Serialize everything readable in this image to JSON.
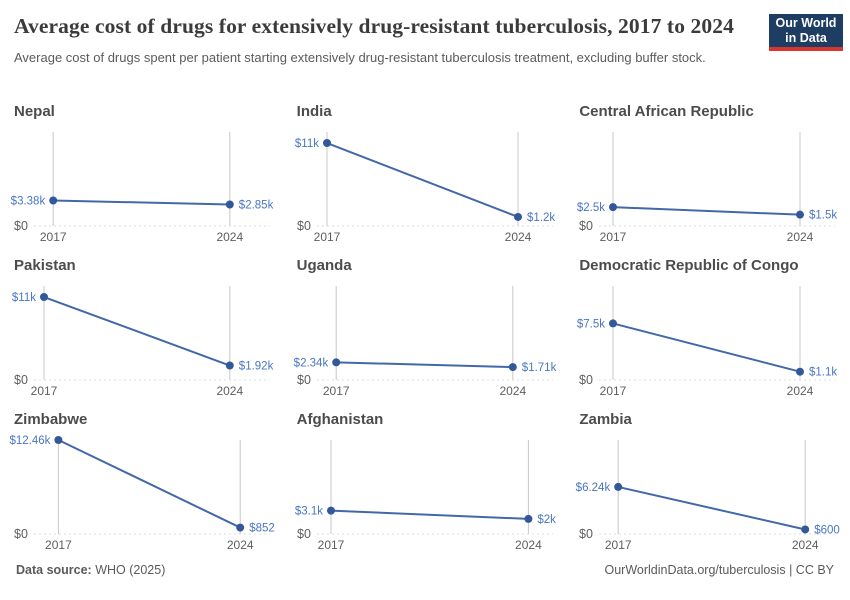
{
  "header": {
    "title": "Average cost of drugs for extensively drug-resistant tuberculosis, 2017 to 2024",
    "subtitle": "Average cost of drugs spent per patient starting extensively drug-resistant tuberculosis treatment, excluding buffer stock.",
    "logo": {
      "line1": "Our World",
      "line2": "in Data",
      "bg_color": "#1d3d63",
      "accent_color": "#d7352e"
    }
  },
  "chart_data": {
    "type": "line",
    "x": [
      2017,
      2024
    ],
    "x_tick_labels": [
      "2017",
      "2024"
    ],
    "y_zero_label": "$0",
    "shared_ylim": [
      0,
      12460
    ],
    "grid": "baseline-only",
    "legend": "none",
    "facets": [
      {
        "title": "Nepal",
        "values": [
          3380,
          2850
        ],
        "labels": [
          "$3.38k",
          "$2.85k"
        ]
      },
      {
        "title": "India",
        "values": [
          11000,
          1200
        ],
        "labels": [
          "$11k",
          "$1.2k"
        ]
      },
      {
        "title": "Central African Republic",
        "values": [
          2500,
          1500
        ],
        "labels": [
          "$2.5k",
          "$1.5k"
        ]
      },
      {
        "title": "Pakistan",
        "values": [
          11000,
          1920
        ],
        "labels": [
          "$11k",
          "$1.92k"
        ]
      },
      {
        "title": "Uganda",
        "values": [
          2340,
          1710
        ],
        "labels": [
          "$2.34k",
          "$1.71k"
        ]
      },
      {
        "title": "Democratic Republic of Congo",
        "values": [
          7500,
          1100
        ],
        "labels": [
          "$7.5k",
          "$1.1k"
        ]
      },
      {
        "title": "Zimbabwe",
        "values": [
          12460,
          852
        ],
        "labels": [
          "$12.46k",
          "$852"
        ]
      },
      {
        "title": "Afghanistan",
        "values": [
          3100,
          2000
        ],
        "labels": [
          "$3.1k",
          "$2k"
        ]
      },
      {
        "title": "Zambia",
        "values": [
          6240,
          600
        ],
        "labels": [
          "$6.24k",
          "$600"
        ]
      }
    ]
  },
  "colors": {
    "line": "#4268a8",
    "dot": "#33589a",
    "value_label": "#4a76c4",
    "axis_text": "#5e5e5e",
    "entity_line": "#c8c8c8",
    "baseline": "#dcdcdc",
    "facet_title": "#4c4c4c"
  },
  "footer": {
    "source_label": "Data source:",
    "source_value": " WHO (2025)",
    "credit_link": "OurWorldinData.org/tuberculosis",
    "credit_license": " | CC BY"
  }
}
